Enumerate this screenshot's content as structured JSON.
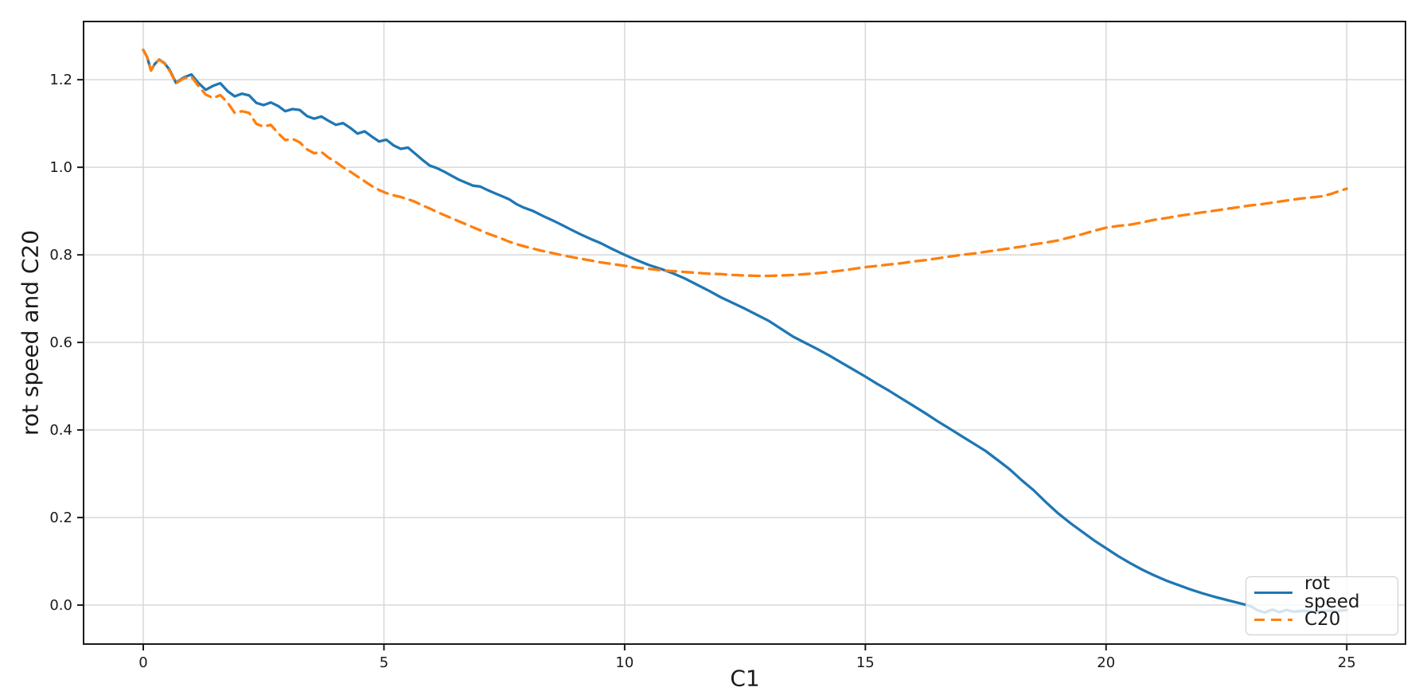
{
  "figure": {
    "background": "#ffffff",
    "text_color": "#1a1a1a",
    "grid_color": "#d8d8d8",
    "spine_color": "#1a1a1a"
  },
  "chart_data": {
    "type": "line",
    "title": "",
    "xlabel": "C1",
    "ylabel": "rot speed and C20",
    "xlim": [
      -1.24,
      26.22
    ],
    "ylim": [
      -0.089,
      1.333
    ],
    "xticks": [
      0,
      5,
      10,
      15,
      20,
      25
    ],
    "yticks": [
      0.0,
      0.2,
      0.4,
      0.6,
      0.8,
      1.0,
      1.2
    ],
    "grid": true,
    "legend_position": "lower right",
    "series": [
      {
        "name": "rot speed",
        "color": "#1f77b4",
        "style": "solid",
        "points": [
          [
            0.0,
            1.268
          ],
          [
            0.08,
            1.252
          ],
          [
            0.16,
            1.221
          ],
          [
            0.24,
            1.236
          ],
          [
            0.33,
            1.246
          ],
          [
            0.44,
            1.238
          ],
          [
            0.55,
            1.222
          ],
          [
            0.68,
            1.193
          ],
          [
            0.84,
            1.205
          ],
          [
            1.0,
            1.212
          ],
          [
            1.15,
            1.192
          ],
          [
            1.3,
            1.177
          ],
          [
            1.45,
            1.186
          ],
          [
            1.6,
            1.192
          ],
          [
            1.75,
            1.174
          ],
          [
            1.9,
            1.162
          ],
          [
            2.05,
            1.168
          ],
          [
            2.2,
            1.164
          ],
          [
            2.35,
            1.147
          ],
          [
            2.5,
            1.142
          ],
          [
            2.65,
            1.148
          ],
          [
            2.8,
            1.14
          ],
          [
            2.95,
            1.128
          ],
          [
            3.1,
            1.133
          ],
          [
            3.25,
            1.131
          ],
          [
            3.4,
            1.117
          ],
          [
            3.55,
            1.111
          ],
          [
            3.7,
            1.116
          ],
          [
            3.85,
            1.106
          ],
          [
            4.0,
            1.097
          ],
          [
            4.15,
            1.101
          ],
          [
            4.3,
            1.09
          ],
          [
            4.45,
            1.077
          ],
          [
            4.6,
            1.082
          ],
          [
            4.75,
            1.07
          ],
          [
            4.9,
            1.059
          ],
          [
            5.05,
            1.063
          ],
          [
            5.2,
            1.05
          ],
          [
            5.35,
            1.042
          ],
          [
            5.5,
            1.045
          ],
          [
            5.65,
            1.031
          ],
          [
            5.8,
            1.017
          ],
          [
            5.95,
            1.004
          ],
          [
            6.1,
            0.998
          ],
          [
            6.25,
            0.99
          ],
          [
            6.4,
            0.981
          ],
          [
            6.55,
            0.972
          ],
          [
            6.7,
            0.965
          ],
          [
            6.85,
            0.958
          ],
          [
            7.0,
            0.956
          ],
          [
            7.15,
            0.948
          ],
          [
            7.3,
            0.941
          ],
          [
            7.45,
            0.934
          ],
          [
            7.6,
            0.927
          ],
          [
            7.75,
            0.916
          ],
          [
            7.9,
            0.908
          ],
          [
            8.1,
            0.9
          ],
          [
            8.3,
            0.889
          ],
          [
            8.5,
            0.879
          ],
          [
            8.7,
            0.868
          ],
          [
            8.9,
            0.857
          ],
          [
            9.1,
            0.846
          ],
          [
            9.3,
            0.836
          ],
          [
            9.5,
            0.827
          ],
          [
            9.75,
            0.813
          ],
          [
            10.0,
            0.8
          ],
          [
            10.25,
            0.788
          ],
          [
            10.5,
            0.777
          ],
          [
            10.75,
            0.768
          ],
          [
            11.0,
            0.758
          ],
          [
            11.25,
            0.746
          ],
          [
            11.5,
            0.732
          ],
          [
            11.75,
            0.718
          ],
          [
            12.0,
            0.703
          ],
          [
            12.25,
            0.69
          ],
          [
            12.5,
            0.677
          ],
          [
            12.75,
            0.663
          ],
          [
            13.0,
            0.649
          ],
          [
            13.25,
            0.631
          ],
          [
            13.5,
            0.613
          ],
          [
            13.75,
            0.599
          ],
          [
            14.0,
            0.585
          ],
          [
            14.25,
            0.57
          ],
          [
            14.5,
            0.554
          ],
          [
            14.75,
            0.538
          ],
          [
            15.0,
            0.522
          ],
          [
            15.25,
            0.505
          ],
          [
            15.5,
            0.489
          ],
          [
            15.75,
            0.472
          ],
          [
            16.0,
            0.455
          ],
          [
            16.25,
            0.438
          ],
          [
            16.5,
            0.42
          ],
          [
            16.75,
            0.403
          ],
          [
            17.0,
            0.386
          ],
          [
            17.25,
            0.369
          ],
          [
            17.5,
            0.352
          ],
          [
            17.75,
            0.331
          ],
          [
            18.0,
            0.31
          ],
          [
            18.25,
            0.285
          ],
          [
            18.5,
            0.262
          ],
          [
            18.75,
            0.235
          ],
          [
            19.0,
            0.21
          ],
          [
            19.25,
            0.188
          ],
          [
            19.5,
            0.168
          ],
          [
            19.75,
            0.148
          ],
          [
            20.0,
            0.13
          ],
          [
            20.25,
            0.112
          ],
          [
            20.5,
            0.096
          ],
          [
            20.75,
            0.081
          ],
          [
            21.0,
            0.068
          ],
          [
            21.25,
            0.056
          ],
          [
            21.5,
            0.046
          ],
          [
            21.75,
            0.036
          ],
          [
            22.0,
            0.027
          ],
          [
            22.25,
            0.019
          ],
          [
            22.5,
            0.012
          ],
          [
            22.75,
            0.005
          ],
          [
            23.0,
            -0.002
          ],
          [
            23.15,
            -0.012
          ],
          [
            23.3,
            -0.017
          ],
          [
            23.45,
            -0.01
          ],
          [
            23.6,
            -0.016
          ],
          [
            23.75,
            -0.011
          ],
          [
            23.9,
            -0.015
          ],
          [
            24.1,
            -0.013
          ],
          [
            24.3,
            -0.015
          ],
          [
            24.6,
            -0.013
          ],
          [
            24.8,
            -0.014
          ],
          [
            25.0,
            -0.011
          ]
        ]
      },
      {
        "name": "C20",
        "color": "#ff7f0e",
        "style": "dashed",
        "points": [
          [
            0.0,
            1.268
          ],
          [
            0.08,
            1.252
          ],
          [
            0.16,
            1.221
          ],
          [
            0.24,
            1.236
          ],
          [
            0.33,
            1.246
          ],
          [
            0.44,
            1.237
          ],
          [
            0.55,
            1.22
          ],
          [
            0.68,
            1.192
          ],
          [
            0.84,
            1.203
          ],
          [
            1.0,
            1.207
          ],
          [
            1.15,
            1.185
          ],
          [
            1.3,
            1.166
          ],
          [
            1.45,
            1.158
          ],
          [
            1.6,
            1.165
          ],
          [
            1.75,
            1.148
          ],
          [
            1.9,
            1.124
          ],
          [
            2.05,
            1.128
          ],
          [
            2.2,
            1.124
          ],
          [
            2.35,
            1.099
          ],
          [
            2.5,
            1.093
          ],
          [
            2.65,
            1.097
          ],
          [
            2.8,
            1.078
          ],
          [
            2.95,
            1.062
          ],
          [
            3.1,
            1.065
          ],
          [
            3.25,
            1.057
          ],
          [
            3.4,
            1.041
          ],
          [
            3.55,
            1.032
          ],
          [
            3.7,
            1.035
          ],
          [
            3.85,
            1.022
          ],
          [
            4.0,
            1.012
          ],
          [
            4.15,
            1.0
          ],
          [
            4.3,
            0.99
          ],
          [
            4.45,
            0.979
          ],
          [
            4.6,
            0.968
          ],
          [
            4.75,
            0.957
          ],
          [
            4.9,
            0.948
          ],
          [
            5.05,
            0.941
          ],
          [
            5.2,
            0.936
          ],
          [
            5.35,
            0.932
          ],
          [
            5.5,
            0.927
          ],
          [
            5.65,
            0.921
          ],
          [
            5.8,
            0.913
          ],
          [
            5.95,
            0.906
          ],
          [
            6.1,
            0.898
          ],
          [
            6.25,
            0.891
          ],
          [
            6.4,
            0.884
          ],
          [
            6.55,
            0.877
          ],
          [
            6.7,
            0.87
          ],
          [
            6.85,
            0.863
          ],
          [
            7.0,
            0.856
          ],
          [
            7.15,
            0.849
          ],
          [
            7.3,
            0.843
          ],
          [
            7.45,
            0.837
          ],
          [
            7.6,
            0.83
          ],
          [
            7.8,
            0.823
          ],
          [
            8.0,
            0.817
          ],
          [
            8.25,
            0.81
          ],
          [
            8.5,
            0.804
          ],
          [
            8.75,
            0.798
          ],
          [
            9.0,
            0.793
          ],
          [
            9.25,
            0.788
          ],
          [
            9.5,
            0.783
          ],
          [
            9.75,
            0.779
          ],
          [
            10.0,
            0.775
          ],
          [
            10.25,
            0.771
          ],
          [
            10.5,
            0.768
          ],
          [
            10.75,
            0.765
          ],
          [
            11.0,
            0.763
          ],
          [
            11.25,
            0.761
          ],
          [
            11.5,
            0.759
          ],
          [
            11.75,
            0.757
          ],
          [
            12.0,
            0.756
          ],
          [
            12.25,
            0.754
          ],
          [
            12.5,
            0.753
          ],
          [
            12.75,
            0.752
          ],
          [
            13.0,
            0.752
          ],
          [
            13.25,
            0.753
          ],
          [
            13.5,
            0.754
          ],
          [
            13.75,
            0.756
          ],
          [
            14.0,
            0.758
          ],
          [
            14.25,
            0.761
          ],
          [
            14.5,
            0.764
          ],
          [
            14.75,
            0.768
          ],
          [
            15.0,
            0.772
          ],
          [
            15.25,
            0.775
          ],
          [
            15.5,
            0.778
          ],
          [
            15.75,
            0.781
          ],
          [
            16.0,
            0.785
          ],
          [
            16.25,
            0.788
          ],
          [
            16.5,
            0.792
          ],
          [
            16.75,
            0.796
          ],
          [
            17.0,
            0.8
          ],
          [
            17.25,
            0.803
          ],
          [
            17.5,
            0.807
          ],
          [
            17.75,
            0.811
          ],
          [
            18.0,
            0.815
          ],
          [
            18.25,
            0.819
          ],
          [
            18.5,
            0.824
          ],
          [
            18.75,
            0.828
          ],
          [
            19.0,
            0.833
          ],
          [
            19.25,
            0.84
          ],
          [
            19.5,
            0.847
          ],
          [
            19.75,
            0.855
          ],
          [
            20.0,
            0.862
          ],
          [
            20.25,
            0.866
          ],
          [
            20.5,
            0.869
          ],
          [
            20.75,
            0.874
          ],
          [
            21.0,
            0.88
          ],
          [
            21.25,
            0.884
          ],
          [
            21.5,
            0.889
          ],
          [
            21.75,
            0.893
          ],
          [
            22.0,
            0.897
          ],
          [
            22.25,
            0.901
          ],
          [
            22.5,
            0.905
          ],
          [
            22.75,
            0.909
          ],
          [
            23.0,
            0.913
          ],
          [
            23.25,
            0.916
          ],
          [
            23.5,
            0.92
          ],
          [
            23.75,
            0.924
          ],
          [
            24.0,
            0.928
          ],
          [
            24.25,
            0.931
          ],
          [
            24.5,
            0.934
          ],
          [
            24.7,
            0.94
          ],
          [
            24.85,
            0.946
          ],
          [
            25.0,
            0.951
          ]
        ]
      }
    ]
  }
}
